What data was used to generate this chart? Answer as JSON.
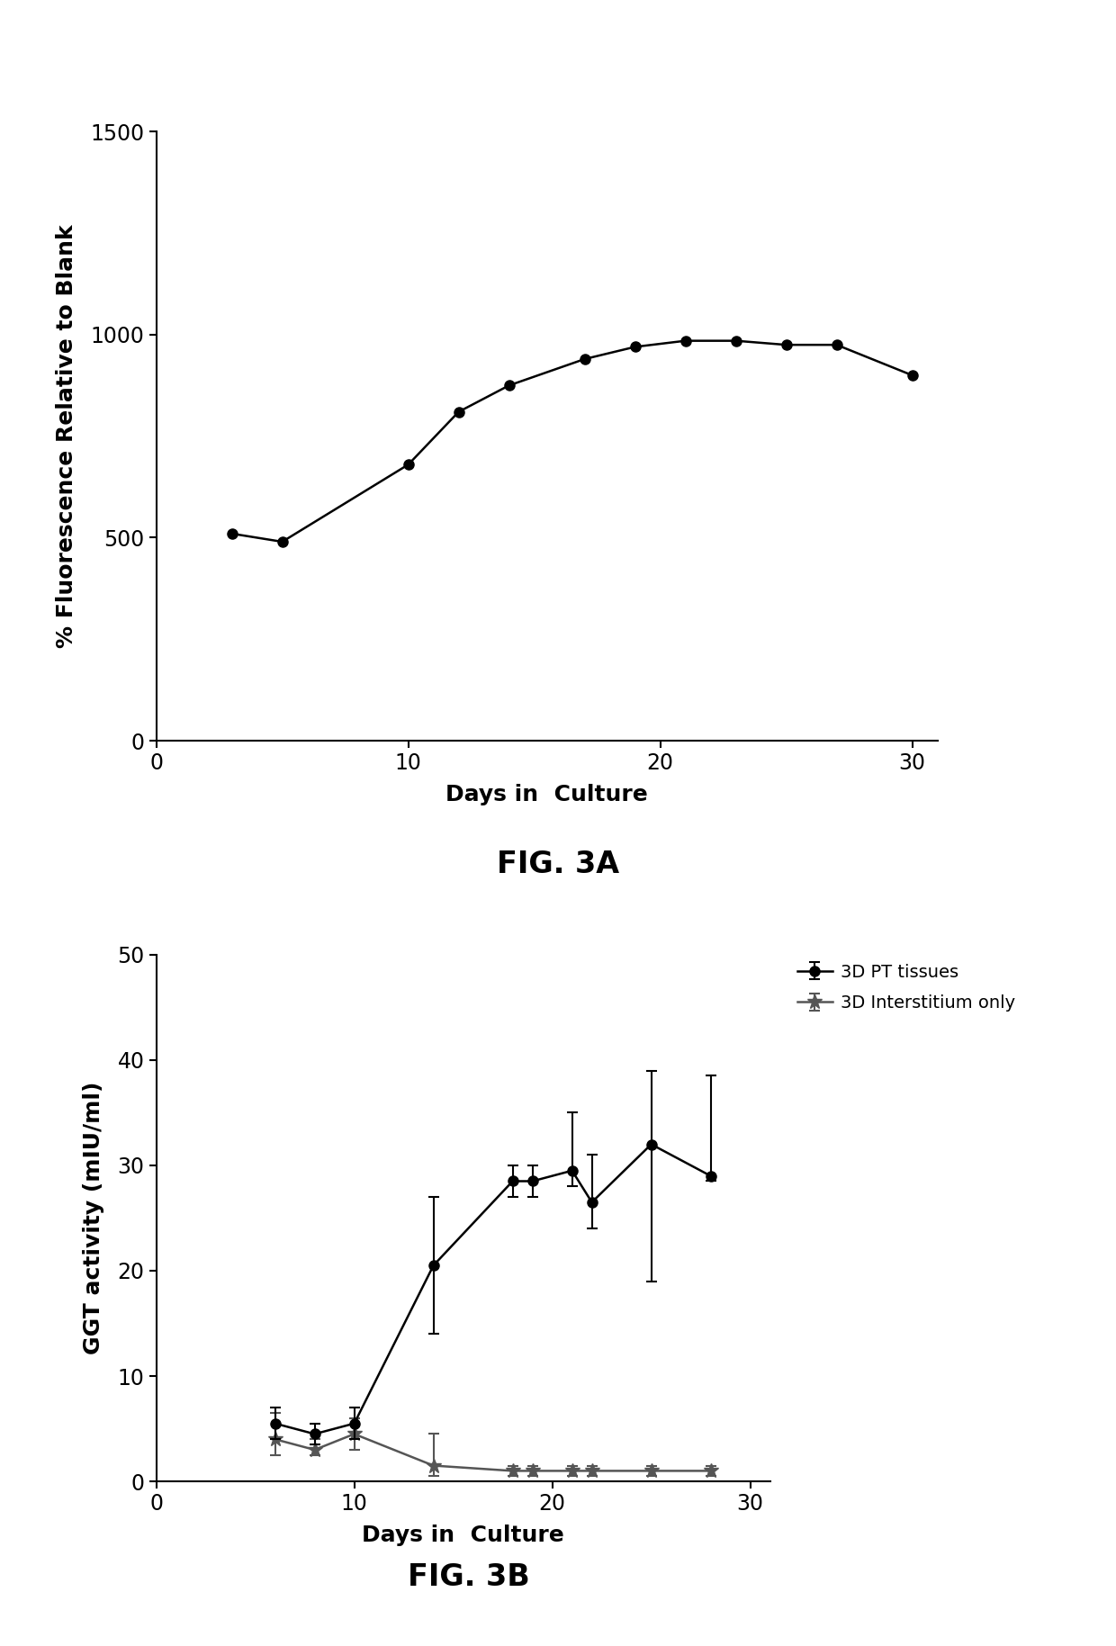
{
  "fig3a": {
    "x": [
      3,
      5,
      10,
      12,
      14,
      17,
      19,
      21,
      23,
      25,
      27,
      30
    ],
    "y": [
      510,
      490,
      680,
      810,
      875,
      940,
      970,
      985,
      985,
      975,
      975,
      900
    ],
    "ylabel": "% Fluorescence Relative to Blank",
    "xlabel": "Days in  Culture",
    "ylim": [
      0,
      1500
    ],
    "xlim": [
      0,
      31
    ],
    "yticks": [
      0,
      500,
      1000,
      1500
    ],
    "xticks": [
      0,
      10,
      20,
      30
    ],
    "figcaption": "FIG. 3A"
  },
  "fig3b": {
    "pt_x": [
      6,
      8,
      10,
      14,
      18,
      19,
      21,
      22,
      25,
      28
    ],
    "pt_y": [
      5.5,
      4.5,
      5.5,
      20.5,
      28.5,
      28.5,
      29.5,
      26.5,
      32.0,
      29.0
    ],
    "pt_yerr_lo": [
      1.5,
      1.0,
      1.5,
      6.5,
      1.5,
      1.5,
      1.5,
      2.5,
      13.0,
      0.5
    ],
    "pt_yerr_hi": [
      1.5,
      1.0,
      1.5,
      6.5,
      1.5,
      1.5,
      5.5,
      4.5,
      7.0,
      9.5
    ],
    "int_x": [
      6,
      8,
      10,
      14,
      18,
      19,
      21,
      22,
      25,
      28
    ],
    "int_y": [
      4.0,
      3.0,
      4.5,
      1.5,
      1.0,
      1.0,
      1.0,
      1.0,
      1.0,
      1.0
    ],
    "int_yerr_lo": [
      1.5,
      0.5,
      1.5,
      1.0,
      0.5,
      0.5,
      0.5,
      0.5,
      0.5,
      0.5
    ],
    "int_yerr_hi": [
      2.5,
      1.0,
      1.5,
      3.0,
      0.5,
      0.5,
      0.5,
      0.5,
      0.5,
      0.5
    ],
    "ylabel": "GGT activity (mIU/ml)",
    "xlabel": "Days in  Culture",
    "ylim": [
      0,
      50
    ],
    "xlim": [
      0,
      31
    ],
    "yticks": [
      0,
      10,
      20,
      30,
      40,
      50
    ],
    "xticks": [
      0,
      10,
      20,
      30
    ],
    "legend_pt": "3D PT tissues",
    "legend_int": "3D Interstitium only",
    "figcaption": "FIG. 3B"
  },
  "background_color": "#ffffff",
  "line_color": "#000000",
  "int_color": "#555555",
  "marker_size": 8,
  "linewidth": 1.8,
  "tick_fontsize": 17,
  "label_fontsize": 18,
  "caption_fontsize": 24
}
